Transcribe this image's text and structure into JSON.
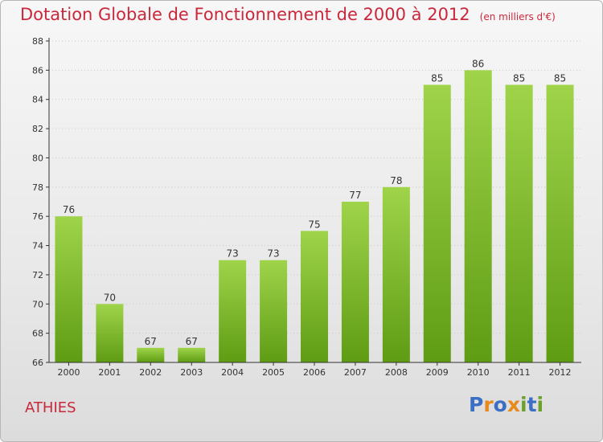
{
  "header": {
    "title": "Dotation Globale de Fonctionnement de 2000 à 2012",
    "unit": "(en milliers d'€)"
  },
  "commune": "ATHIES",
  "logo": {
    "text": "Proxiti",
    "letters": [
      "P",
      "r",
      "o",
      "x",
      "i",
      "t",
      "i"
    ],
    "colors": [
      "#3a6fc4",
      "#e8891b",
      "#3a6fc4",
      "#e8891b",
      "#6aa02b",
      "#3a6fc4",
      "#6aa02b"
    ]
  },
  "colors": {
    "bar_top": "#9fd44a",
    "bar_bottom": "#5e9c14",
    "title": "#c8283c",
    "axis": "#333333"
  },
  "chart_data": {
    "type": "bar",
    "title": "Dotation Globale de Fonctionnement de 2000 à 2012",
    "subtitle": "(en milliers d'€)",
    "xlabel": "",
    "ylabel": "",
    "categories": [
      "2000",
      "2001",
      "2002",
      "2003",
      "2004",
      "2005",
      "2006",
      "2007",
      "2008",
      "2009",
      "2010",
      "2011",
      "2012"
    ],
    "values": [
      76,
      70,
      67,
      67,
      73,
      73,
      75,
      77,
      78,
      85,
      86,
      85,
      85
    ],
    "ylim": [
      66,
      88
    ],
    "yticks": [
      66,
      68,
      70,
      72,
      74,
      76,
      78,
      80,
      82,
      84,
      86,
      88
    ],
    "grid": "horizontal-dotted",
    "legend": "none"
  }
}
